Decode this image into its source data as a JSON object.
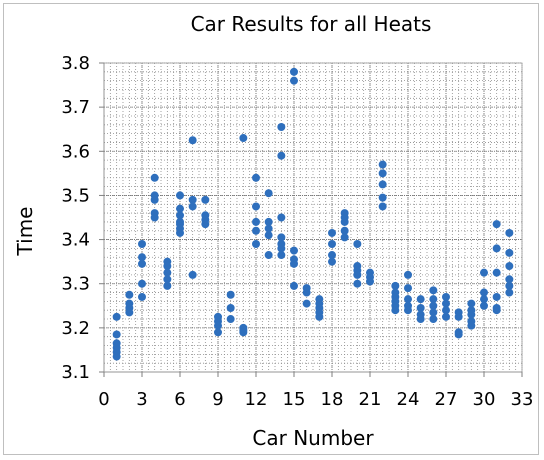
{
  "chart_data": {
    "type": "scatter",
    "title": "Car Results for all Heats",
    "xlabel": "Car Number",
    "ylabel": "Time",
    "xlim": [
      0,
      33
    ],
    "ylim": [
      3.1,
      3.8
    ],
    "x_ticks": [
      0,
      3,
      6,
      9,
      12,
      15,
      18,
      21,
      24,
      27,
      30,
      33
    ],
    "x_tick_labels": [
      "0",
      "3",
      "6",
      "9",
      "12",
      "15",
      "18",
      "21",
      "24",
      "27",
      "30",
      "33"
    ],
    "y_ticks": [
      3.1,
      3.2,
      3.3,
      3.4,
      3.5,
      3.6,
      3.7,
      3.8
    ],
    "y_tick_labels": [
      "3.1",
      "3.2",
      "3.3",
      "3.4",
      "3.5",
      "3.6",
      "3.7",
      "3.8"
    ],
    "grid": "dotted",
    "marker_color": "#2e6fbd",
    "points": [
      [
        1,
        3.225
      ],
      [
        1,
        3.185
      ],
      [
        1,
        3.165
      ],
      [
        1,
        3.155
      ],
      [
        1,
        3.145
      ],
      [
        1,
        3.135
      ],
      [
        2,
        3.275
      ],
      [
        2,
        3.255
      ],
      [
        2,
        3.245
      ],
      [
        2,
        3.235
      ],
      [
        3,
        3.39
      ],
      [
        3,
        3.36
      ],
      [
        3,
        3.345
      ],
      [
        3,
        3.3
      ],
      [
        3,
        3.27
      ],
      [
        4,
        3.54
      ],
      [
        4,
        3.5
      ],
      [
        4,
        3.49
      ],
      [
        4,
        3.46
      ],
      [
        4,
        3.45
      ],
      [
        5,
        3.35
      ],
      [
        5,
        3.34
      ],
      [
        5,
        3.325
      ],
      [
        5,
        3.31
      ],
      [
        5,
        3.295
      ],
      [
        6,
        3.5
      ],
      [
        6,
        3.47
      ],
      [
        6,
        3.455
      ],
      [
        6,
        3.44
      ],
      [
        6,
        3.435
      ],
      [
        6,
        3.425
      ],
      [
        6,
        3.415
      ],
      [
        7,
        3.625
      ],
      [
        7,
        3.49
      ],
      [
        7,
        3.475
      ],
      [
        7,
        3.32
      ],
      [
        8,
        3.49
      ],
      [
        8,
        3.455
      ],
      [
        8,
        3.445
      ],
      [
        8,
        3.435
      ],
      [
        9,
        3.225
      ],
      [
        9,
        3.215
      ],
      [
        9,
        3.205
      ],
      [
        9,
        3.19
      ],
      [
        10,
        3.275
      ],
      [
        10,
        3.245
      ],
      [
        10,
        3.22
      ],
      [
        11,
        3.63
      ],
      [
        11,
        3.2
      ],
      [
        11,
        3.195
      ],
      [
        11,
        3.19
      ],
      [
        12,
        3.54
      ],
      [
        12,
        3.475
      ],
      [
        12,
        3.44
      ],
      [
        12,
        3.42
      ],
      [
        12,
        3.39
      ],
      [
        13,
        3.505
      ],
      [
        13,
        3.44
      ],
      [
        13,
        3.425
      ],
      [
        13,
        3.41
      ],
      [
        13,
        3.365
      ],
      [
        14,
        3.655
      ],
      [
        14,
        3.59
      ],
      [
        14,
        3.45
      ],
      [
        14,
        3.405
      ],
      [
        14,
        3.39
      ],
      [
        14,
        3.38
      ],
      [
        14,
        3.365
      ],
      [
        15,
        3.78
      ],
      [
        15,
        3.76
      ],
      [
        15,
        3.375
      ],
      [
        15,
        3.355
      ],
      [
        15,
        3.345
      ],
      [
        15,
        3.295
      ],
      [
        16,
        3.29
      ],
      [
        16,
        3.28
      ],
      [
        16,
        3.255
      ],
      [
        17,
        3.265
      ],
      [
        17,
        3.255
      ],
      [
        17,
        3.245
      ],
      [
        17,
        3.235
      ],
      [
        17,
        3.225
      ],
      [
        18,
        3.415
      ],
      [
        18,
        3.39
      ],
      [
        18,
        3.365
      ],
      [
        18,
        3.35
      ],
      [
        19,
        3.46
      ],
      [
        19,
        3.45
      ],
      [
        19,
        3.44
      ],
      [
        19,
        3.42
      ],
      [
        19,
        3.405
      ],
      [
        20,
        3.39
      ],
      [
        20,
        3.34
      ],
      [
        20,
        3.33
      ],
      [
        20,
        3.32
      ],
      [
        20,
        3.3
      ],
      [
        21,
        3.325
      ],
      [
        21,
        3.315
      ],
      [
        21,
        3.305
      ],
      [
        22,
        3.57
      ],
      [
        22,
        3.55
      ],
      [
        22,
        3.525
      ],
      [
        22,
        3.495
      ],
      [
        22,
        3.475
      ],
      [
        23,
        3.295
      ],
      [
        23,
        3.28
      ],
      [
        23,
        3.27
      ],
      [
        23,
        3.26
      ],
      [
        23,
        3.25
      ],
      [
        23,
        3.24
      ],
      [
        24,
        3.32
      ],
      [
        24,
        3.29
      ],
      [
        24,
        3.265
      ],
      [
        24,
        3.25
      ],
      [
        24,
        3.24
      ],
      [
        25,
        3.265
      ],
      [
        25,
        3.245
      ],
      [
        25,
        3.23
      ],
      [
        25,
        3.22
      ],
      [
        26,
        3.285
      ],
      [
        26,
        3.265
      ],
      [
        26,
        3.25
      ],
      [
        26,
        3.235
      ],
      [
        26,
        3.22
      ],
      [
        27,
        3.27
      ],
      [
        27,
        3.255
      ],
      [
        27,
        3.24
      ],
      [
        27,
        3.225
      ],
      [
        28,
        3.235
      ],
      [
        28,
        3.225
      ],
      [
        28,
        3.19
      ],
      [
        28,
        3.185
      ],
      [
        29,
        3.255
      ],
      [
        29,
        3.24
      ],
      [
        29,
        3.23
      ],
      [
        29,
        3.215
      ],
      [
        29,
        3.205
      ],
      [
        30,
        3.325
      ],
      [
        30,
        3.28
      ],
      [
        30,
        3.265
      ],
      [
        30,
        3.25
      ],
      [
        31,
        3.435
      ],
      [
        31,
        3.38
      ],
      [
        31,
        3.325
      ],
      [
        31,
        3.27
      ],
      [
        31,
        3.245
      ],
      [
        31,
        3.24
      ],
      [
        32,
        3.415
      ],
      [
        32,
        3.37
      ],
      [
        32,
        3.34
      ],
      [
        32,
        3.31
      ],
      [
        32,
        3.295
      ],
      [
        32,
        3.28
      ]
    ]
  }
}
